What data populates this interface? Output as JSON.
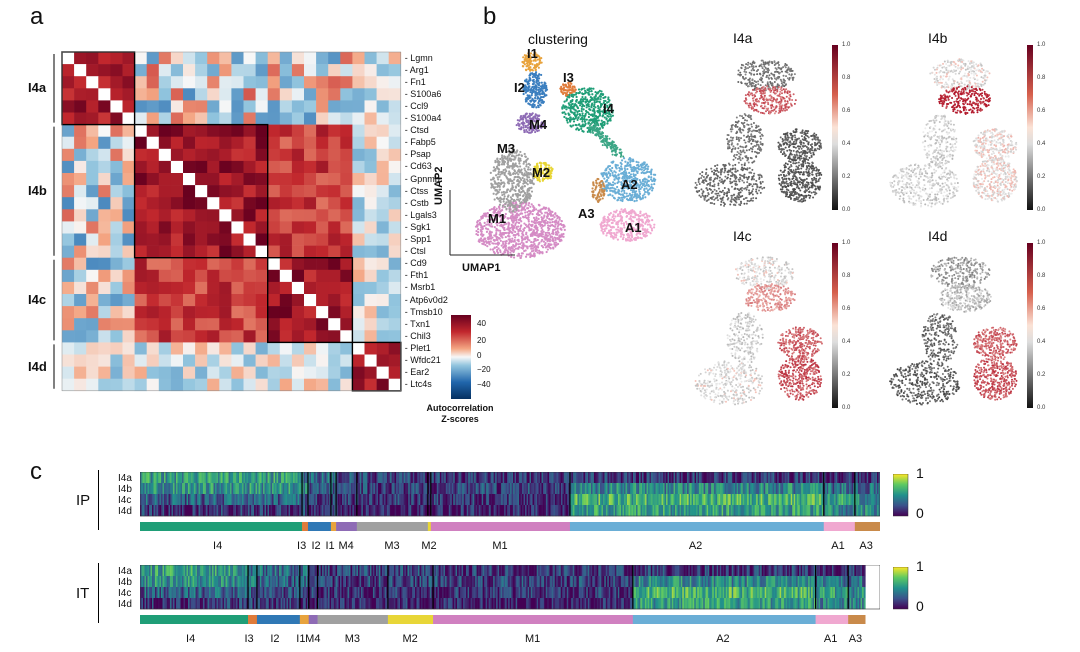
{
  "panels": {
    "a": "a",
    "b": "b",
    "c": "c"
  },
  "panel_a": {
    "genes": [
      "Lgmn",
      "Arg1",
      "Fn1",
      "S100a6",
      "Ccl9",
      "S100a4",
      "Ctsd",
      "Fabp5",
      "Psap",
      "Cd63",
      "Gpnmb",
      "Ctss",
      "Cstb",
      "Lgals3",
      "Sgk1",
      "Spp1",
      "Ctsl",
      "Cd9",
      "Fth1",
      "Msrb1",
      "Atp6v0d2",
      "Tmsb10",
      "Txn1",
      "Chil3",
      "Plet1",
      "Wfdc21",
      "Ear2",
      "Ltc4s"
    ],
    "modules": [
      {
        "name": "I4a",
        "start": 0,
        "end": 5
      },
      {
        "name": "I4b",
        "start": 6,
        "end": 16
      },
      {
        "name": "I4c",
        "start": 17,
        "end": 23
      },
      {
        "name": "I4d",
        "start": 24,
        "end": 27
      }
    ],
    "colorbar": {
      "ticks": [
        "40",
        "20",
        "0",
        "−20",
        "−40"
      ],
      "title_line1": "Autocorrelation",
      "title_line2": "Z-scores"
    }
  },
  "panel_b": {
    "clustering_title": "clustering",
    "axis_x": "UMAP1",
    "axis_y": "UMAP2",
    "clusters": [
      {
        "name": "I1",
        "color": "#e8a33d"
      },
      {
        "name": "I2",
        "color": "#3a7ebf"
      },
      {
        "name": "I3",
        "color": "#e07b39"
      },
      {
        "name": "I4",
        "color": "#1f9e77"
      },
      {
        "name": "M4",
        "color": "#8e6bb5"
      },
      {
        "name": "M3",
        "color": "#a0a0a0"
      },
      {
        "name": "M2",
        "color": "#e8d637"
      },
      {
        "name": "M1",
        "color": "#d58cc5"
      },
      {
        "name": "A2",
        "color": "#6aaed6"
      },
      {
        "name": "A3",
        "color": "#c98a4a"
      },
      {
        "name": "A1",
        "color": "#f0a8d0"
      }
    ],
    "module_maps": [
      "I4a",
      "I4b",
      "I4c",
      "I4d"
    ],
    "colorbar_ticks": [
      "1.0",
      "0.8",
      "0.6",
      "0.4",
      "0.2",
      "0.0"
    ]
  },
  "panel_c": {
    "heatmaps": [
      {
        "name": "IP",
        "rows": [
          "I4a",
          "I4b",
          "I4c",
          "I4d"
        ],
        "segments": [
          {
            "label": "I4",
            "frac": 0.219,
            "color": "#1f9e77"
          },
          {
            "label": "I3",
            "frac": 0.008,
            "color": "#e07b39"
          },
          {
            "label": "I2",
            "frac": 0.031,
            "color": "#2f78b5"
          },
          {
            "label": "I1",
            "frac": 0.007,
            "color": "#e8a33d"
          },
          {
            "label": "M4",
            "frac": 0.028,
            "color": "#8e6bb5"
          },
          {
            "label": "M3",
            "frac": 0.096,
            "color": "#a0a0a0"
          },
          {
            "label": "M2",
            "frac": 0.004,
            "color": "#e8d637"
          },
          {
            "label": "M1",
            "frac": 0.188,
            "color": "#d080c0"
          },
          {
            "label": "A2",
            "frac": 0.343,
            "color": "#6aaed6"
          },
          {
            "label": "A1",
            "frac": 0.042,
            "color": "#f0a8d0"
          },
          {
            "label": "A3",
            "frac": 0.034,
            "color": "#c98a4a"
          }
        ],
        "colorbar": {
          "max": "1",
          "min": "0"
        }
      },
      {
        "name": "IT",
        "rows": [
          "I4a",
          "I4b",
          "I4c",
          "I4d"
        ],
        "segments": [
          {
            "label": "I4",
            "frac": 0.146,
            "color": "#1f9e77"
          },
          {
            "label": "I3",
            "frac": 0.012,
            "color": "#e07b39"
          },
          {
            "label": "I2",
            "frac": 0.058,
            "color": "#2f78b5"
          },
          {
            "label": "I1",
            "frac": 0.012,
            "color": "#e8a33d"
          },
          {
            "label": "M4",
            "frac": 0.012,
            "color": "#8e6bb5"
          },
          {
            "label": "M3",
            "frac": 0.095,
            "color": "#a0a0a0"
          },
          {
            "label": "M2",
            "frac": 0.061,
            "color": "#e8d637"
          },
          {
            "label": "M1",
            "frac": 0.27,
            "color": "#d080c0"
          },
          {
            "label": "A2",
            "frac": 0.247,
            "color": "#6aaed6"
          },
          {
            "label": "A1",
            "frac": 0.044,
            "color": "#f0a8d0"
          },
          {
            "label": "A3",
            "frac": 0.023,
            "color": "#c98a4a"
          }
        ],
        "colorbar": {
          "max": "1",
          "min": "0"
        }
      }
    ]
  }
}
